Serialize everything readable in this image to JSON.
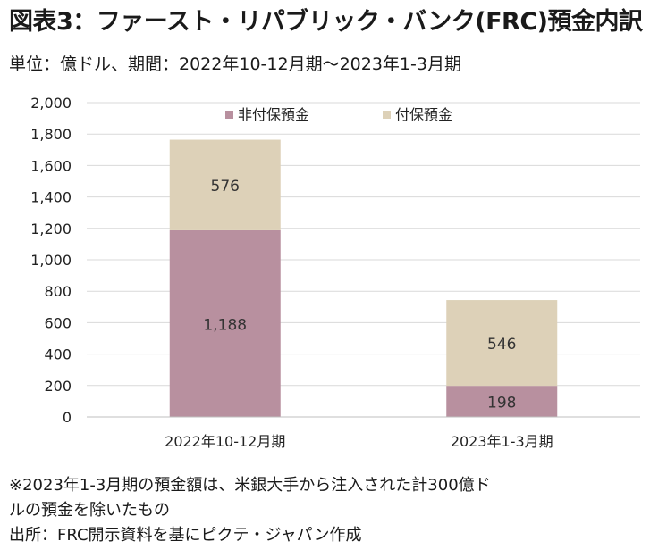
{
  "title": "図表3：ファースト・リパブリック・バンク(FRC)預金内訳",
  "subtitle": "単位：億ドル、期間：2022年10-12月期～2023年1-3月期",
  "notes": [
    "※2023年1-3月期の預金額は、米銀大手から注入された計300億ド",
    "ルの預金を除いたもの",
    "出所：FRC開示資料を基にピクテ・ジャパン作成"
  ],
  "chart_data": {
    "type": "bar",
    "stacked": true,
    "categories": [
      "2022年10-12月期",
      "2023年1-3月期"
    ],
    "series": [
      {
        "name": "非付保預金",
        "values": [
          1188,
          198
        ],
        "color": "#b8909f"
      },
      {
        "name": "付保預金",
        "values": [
          576,
          546
        ],
        "color": "#ddd1b8"
      }
    ],
    "ylim": [
      0,
      2000
    ],
    "yticks": [
      0,
      200,
      400,
      600,
      800,
      1000,
      1200,
      1400,
      1600,
      1800,
      2000
    ],
    "ytick_labels": [
      "0",
      "200",
      "400",
      "600",
      "800",
      "1,000",
      "1,200",
      "1,400",
      "1,600",
      "1,800",
      "2,000"
    ],
    "data_labels": [
      [
        "1,188",
        "198"
      ],
      [
        "576",
        "546"
      ]
    ],
    "grid": true,
    "legend_position": "top-center"
  }
}
